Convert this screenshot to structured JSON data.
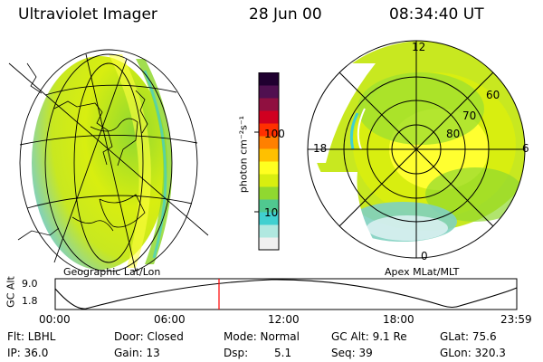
{
  "header": {
    "title": "Ultraviolet Imager",
    "date": "28 Jun 00",
    "time": "08:34:40 UT"
  },
  "left_image": {
    "caption": "Geographic Lat/Lon"
  },
  "right_image": {
    "caption": "Apex MLat/MLT",
    "mlt_labels": [
      "12",
      "18",
      "6",
      "0"
    ],
    "mlat_labels": [
      "60",
      "70",
      "80"
    ]
  },
  "colorbar": {
    "unit_label": "photon cm⁻²s⁻¹",
    "ticks": [
      "100",
      "10"
    ],
    "scale": "log",
    "colors": [
      "#f0f0f0",
      "#b0e8e0",
      "#40d0d0",
      "#50c890",
      "#90d830",
      "#d8ee10",
      "#ffff20",
      "#ffc000",
      "#ff8000",
      "#ff3000",
      "#d00020",
      "#901040",
      "#501050",
      "#200030"
    ]
  },
  "altitude_strip": {
    "ylabel": "GC Alt",
    "yticks": [
      "9.0",
      "1.8"
    ],
    "xticks": [
      "00:00",
      "06:00",
      "12:00",
      "18:00",
      "23:59"
    ],
    "current_time_marker": "08:34:40",
    "marker_color": "#ff0000"
  },
  "info": {
    "filter": "Flt: LBHL",
    "ip": "IP: 36.0",
    "door": "Door: Closed",
    "gain": "Gain: 13",
    "mode": "Mode: Normal",
    "dsp_label": "Dsp:",
    "dsp_value": "5.1",
    "gc_alt": "GC Alt: 9.1 Re",
    "seq": "Seq: 39",
    "glat": "GLat: 75.6",
    "glon": "GLon: 320.3"
  }
}
